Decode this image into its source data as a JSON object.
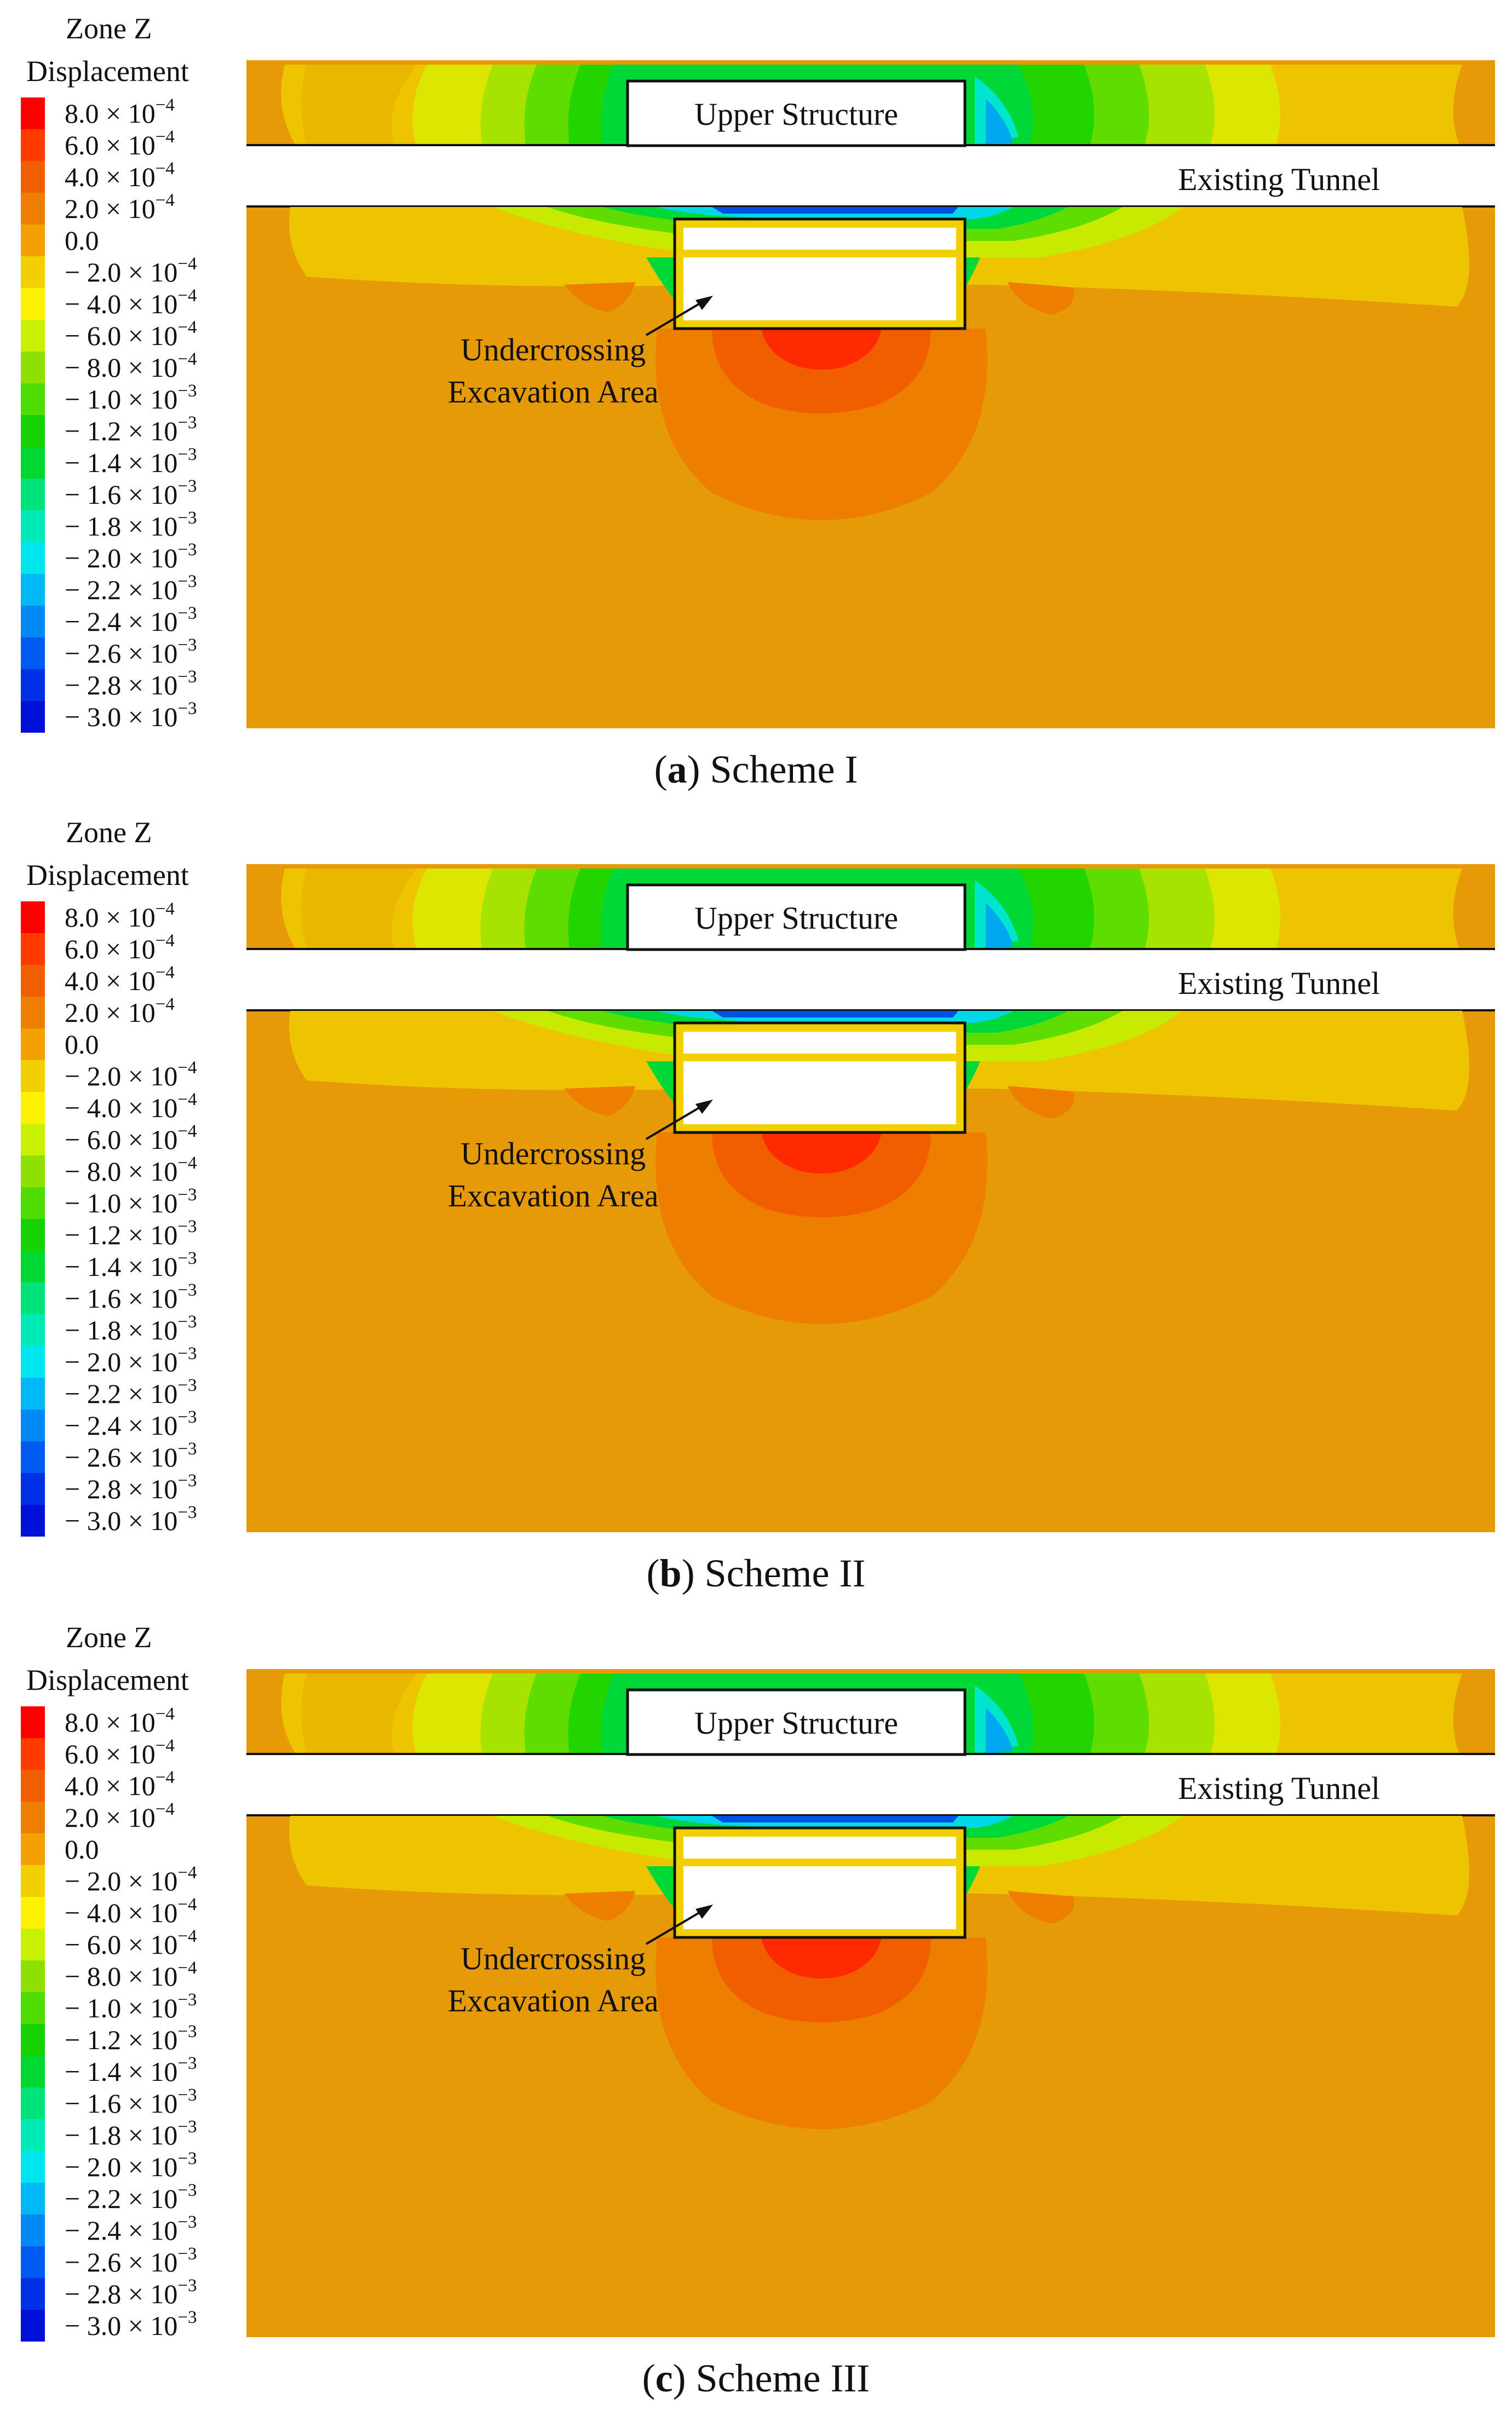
{
  "legend": {
    "title_line1": "Zone Z",
    "title_line2": "Displacement",
    "entries": [
      {
        "mantissa": "8.0",
        "exponent": "−4",
        "color": "#ff0000"
      },
      {
        "mantissa": "6.0",
        "exponent": "−4",
        "color": "#ff3a00"
      },
      {
        "mantissa": "4.0",
        "exponent": "−4",
        "color": "#f05e00"
      },
      {
        "mantissa": "2.0",
        "exponent": "−4",
        "color": "#ee7e00"
      },
      {
        "mantissa": "0.0",
        "exponent": "",
        "color": "#f3a100"
      },
      {
        "mantissa": "− 2.0",
        "exponent": "−4",
        "color": "#f2d000"
      },
      {
        "mantissa": "− 4.0",
        "exponent": "−4",
        "color": "#fff200"
      },
      {
        "mantissa": "− 6.0",
        "exponent": "−4",
        "color": "#c8f000"
      },
      {
        "mantissa": "− 8.0",
        "exponent": "−4",
        "color": "#8ee000"
      },
      {
        "mantissa": "− 1.0",
        "exponent": "−3",
        "color": "#4fdc00"
      },
      {
        "mantissa": "− 1.2",
        "exponent": "−3",
        "color": "#16d200"
      },
      {
        "mantissa": "− 1.4",
        "exponent": "−3",
        "color": "#00d832"
      },
      {
        "mantissa": "− 1.6",
        "exponent": "−3",
        "color": "#00e27a"
      },
      {
        "mantissa": "− 1.8",
        "exponent": "−3",
        "color": "#00eab8"
      },
      {
        "mantissa": "− 2.0",
        "exponent": "−3",
        "color": "#00e6ee"
      },
      {
        "mantissa": "− 2.2",
        "exponent": "−3",
        "color": "#00b8f5"
      },
      {
        "mantissa": "− 2.4",
        "exponent": "−3",
        "color": "#0088f5"
      },
      {
        "mantissa": "− 2.6",
        "exponent": "−3",
        "color": "#005af0"
      },
      {
        "mantissa": "− 2.8",
        "exponent": "−3",
        "color": "#0030e6"
      },
      {
        "mantissa": "− 3.0",
        "exponent": "−3",
        "color": "#0010d8"
      }
    ],
    "times_label": "× 10"
  },
  "labels": {
    "upper_structure": "Upper Structure",
    "existing_tunnel": "Existing Tunnel",
    "excavation_line1": "Undercrossing",
    "excavation_line2": "Excavation Area"
  },
  "panels": [
    {
      "letter": "a",
      "scheme": "Scheme I"
    },
    {
      "letter": "b",
      "scheme": "Scheme II"
    },
    {
      "letter": "c",
      "scheme": "Scheme III"
    }
  ],
  "colors": {
    "ground": "#e69a08",
    "outline": "#111111"
  }
}
